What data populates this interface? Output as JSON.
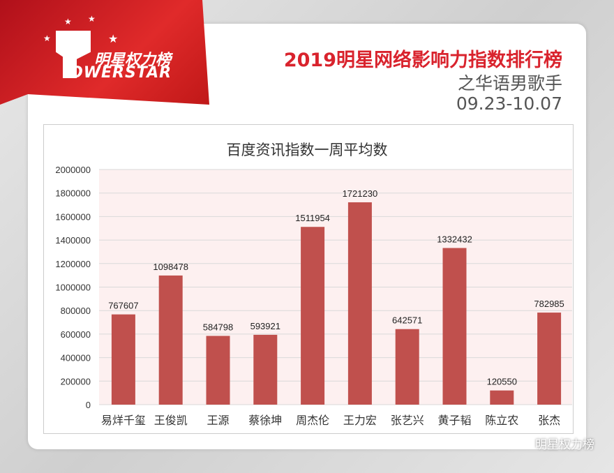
{
  "logo": {
    "cn": "明星权力榜",
    "en": "OWERSTAR"
  },
  "header": {
    "title": "2019明星网络影响力指数排行榜",
    "subtitle": "之华语男歌手",
    "date_range": "09.23-10.07"
  },
  "watermark": "明星权力榜",
  "colors": {
    "bar": "#c0504d",
    "accent": "#d9232d"
  },
  "chart_data": {
    "type": "bar",
    "title": "百度资讯指数一周平均数",
    "categories": [
      "易烊千玺",
      "王俊凯",
      "王源",
      "蔡徐坤",
      "周杰伦",
      "王力宏",
      "张艺兴",
      "黄子韬",
      "陈立农",
      "张杰"
    ],
    "values": [
      767607,
      1098478,
      584798,
      593921,
      1511954,
      1721230,
      642571,
      1332432,
      120550,
      782985
    ],
    "ylim": [
      0,
      2000000
    ],
    "yticks": [
      0,
      200000,
      400000,
      600000,
      800000,
      1000000,
      1200000,
      1400000,
      1600000,
      1800000,
      2000000
    ],
    "grid": true,
    "data_labels": true
  }
}
